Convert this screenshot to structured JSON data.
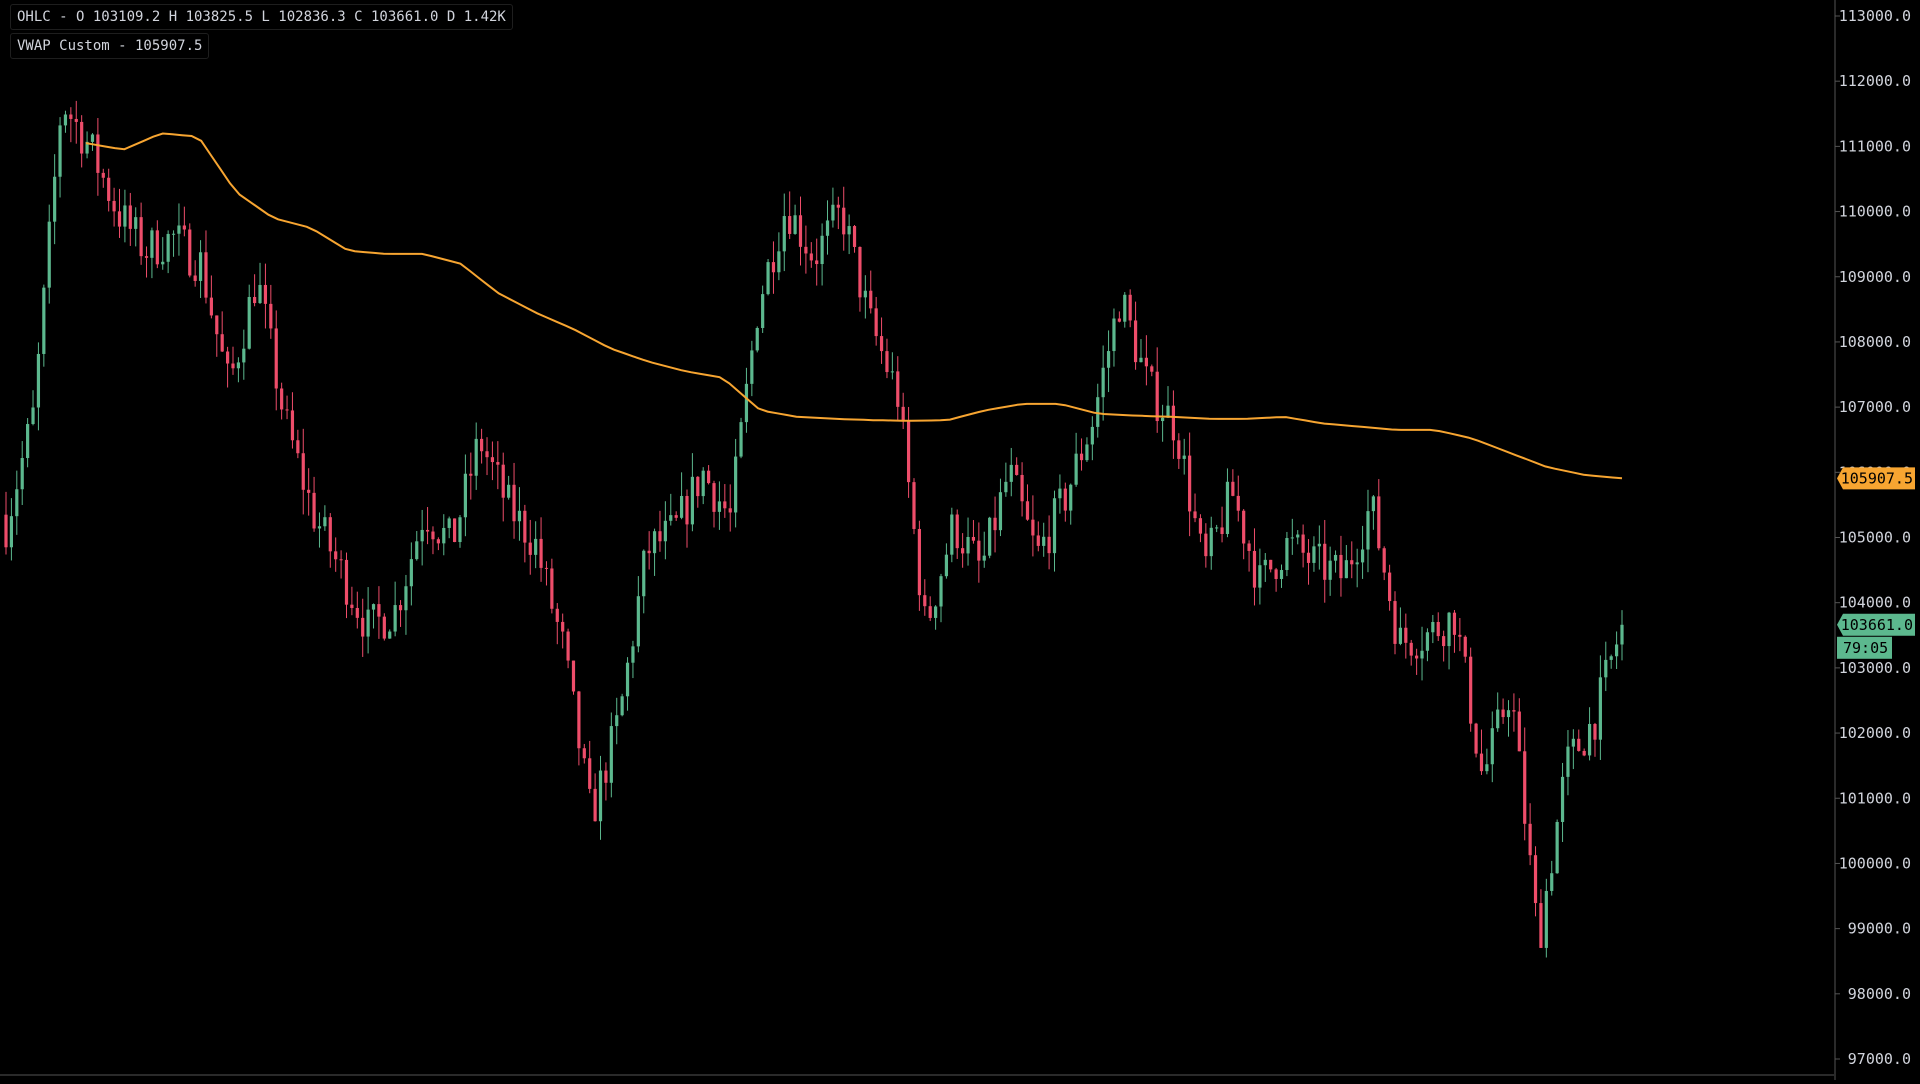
{
  "legend": {
    "ohlc_text": "OHLC - O 103109.2 H 103825.5 L 102836.3 C 103661.0 D 1.42K",
    "vwap_text": "VWAP Custom - 105907.5"
  },
  "colors": {
    "background": "#000000",
    "up": "#5cb88e",
    "down": "#ee4d6a",
    "vwap": "#f7a531",
    "axis_text": "#d1d4dc",
    "axis_line": "#2a2a2a"
  },
  "chart_data": {
    "type": "candlestick",
    "y_axis_side": "right",
    "ylim": [
      97000,
      113000
    ],
    "y_ticks": [
      "113000.0",
      "112000.0",
      "111000.0",
      "110000.0",
      "109000.0",
      "108000.0",
      "107000.0",
      "106000.0",
      "105000.0",
      "104000.0",
      "103000.0",
      "102000.0",
      "101000.0",
      "100000.0",
      "99000.0",
      "98000.0",
      "97000.0"
    ],
    "y_tick_values": [
      113000,
      112000,
      111000,
      110000,
      109000,
      108000,
      107000,
      106000,
      105000,
      104000,
      103000,
      102000,
      101000,
      100000,
      99000,
      98000,
      97000
    ],
    "price_anchors": [
      105200,
      106900,
      111700,
      111000,
      110000,
      109400,
      109600,
      109200,
      107300,
      109000,
      106800,
      105400,
      104500,
      103600,
      103900,
      105400,
      104900,
      106500,
      105500,
      104900,
      103300,
      100700,
      102200,
      104800,
      105100,
      106000,
      105300,
      108600,
      110100,
      109300,
      110000,
      108300,
      107200,
      103600,
      105200,
      104500,
      106000,
      104700,
      105600,
      106800,
      108700,
      107300,
      106700,
      104500,
      105700,
      104300,
      104900,
      104600,
      104400,
      105500,
      103400,
      103500,
      103800,
      101300,
      102700,
      98800,
      101500,
      102200,
      103661
    ],
    "close_anchors": [
      105000,
      106700,
      111500,
      111100,
      109800,
      109300,
      109500,
      109000,
      107500,
      108800,
      106600,
      105300,
      104300,
      103500,
      104100,
      105300,
      104800,
      106300,
      105400,
      105000,
      103500,
      101000,
      102400,
      104900,
      105200,
      105800,
      105200,
      108700,
      109900,
      109200,
      109800,
      108400,
      107400,
      103800,
      105000,
      104600,
      105900,
      104700,
      105500,
      106700,
      108500,
      107200,
      106600,
      104600,
      105600,
      104400,
      104800,
      104700,
      104500,
      105300,
      103600,
      103700,
      103600,
      101500,
      102500,
      99000,
      101300,
      102300,
      103661
    ],
    "vwap_anchors": [
      111050,
      110950,
      111200,
      111150,
      110300,
      109900,
      109750,
      109400,
      109350,
      109350,
      109200,
      108750,
      108450,
      108200,
      107900,
      107700,
      107550,
      107450,
      106950,
      106850,
      106820,
      106800,
      106790,
      106800,
      106950,
      107050,
      107050,
      106900,
      106870,
      106850,
      106820,
      106820,
      106850,
      106750,
      106700,
      106650,
      106650,
      106520,
      106300,
      106080,
      105960,
      105907.5
    ],
    "last_price": {
      "value": 103661.0,
      "label": "103661.0",
      "countdown": "79:05"
    },
    "vwap_last": {
      "value": 105907.5,
      "label": "105907.5"
    }
  }
}
